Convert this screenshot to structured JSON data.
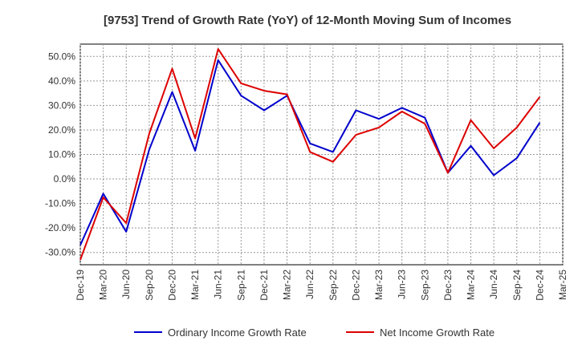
{
  "chart_data": {
    "type": "line",
    "title": "[9753]  Trend of Growth Rate (YoY) of 12-Month Moving Sum of Incomes",
    "xlabel": "",
    "ylabel": "",
    "ylim": [
      -35,
      55
    ],
    "yticks": [
      50,
      40,
      30,
      20,
      10,
      0,
      -10,
      -20,
      -30
    ],
    "ytick_labels": [
      "50.0%",
      "40.0%",
      "30.0%",
      "20.0%",
      "10.0%",
      "0.0%",
      "-10.0%",
      "-20.0%",
      "-30.0%"
    ],
    "x_tick_labels": [
      "Dec-19",
      "Mar-20",
      "Jun-20",
      "Sep-20",
      "Dec-20",
      "Mar-21",
      "Jun-21",
      "Sep-21",
      "Dec-21",
      "Mar-22",
      "Jun-22",
      "Sep-22",
      "Dec-22",
      "Mar-23",
      "Jun-23",
      "Sep-23",
      "Dec-23",
      "Mar-24",
      "Jun-24",
      "Sep-24",
      "Dec-24",
      "Mar-25"
    ],
    "grid": true,
    "legend_position": "bottom",
    "series": [
      {
        "name": "Ordinary Income Growth Rate",
        "color": "#0000cc",
        "values": [
          -27.0,
          -6.0,
          -21.5,
          12.0,
          35.5,
          11.5,
          48.5,
          34.0,
          28.0,
          34.0,
          14.5,
          11.0,
          28.0,
          24.5,
          29.0,
          25.0,
          2.5,
          13.5,
          1.5,
          8.5,
          23.0
        ]
      },
      {
        "name": "Net Income Growth Rate",
        "color": "#dd0000",
        "values": [
          -33.0,
          -7.5,
          -18.0,
          18.5,
          45.0,
          16.5,
          53.0,
          39.0,
          36.0,
          34.5,
          11.0,
          7.0,
          18.0,
          21.0,
          27.5,
          22.5,
          2.5,
          24.0,
          12.5,
          21.0,
          33.5
        ]
      }
    ]
  }
}
